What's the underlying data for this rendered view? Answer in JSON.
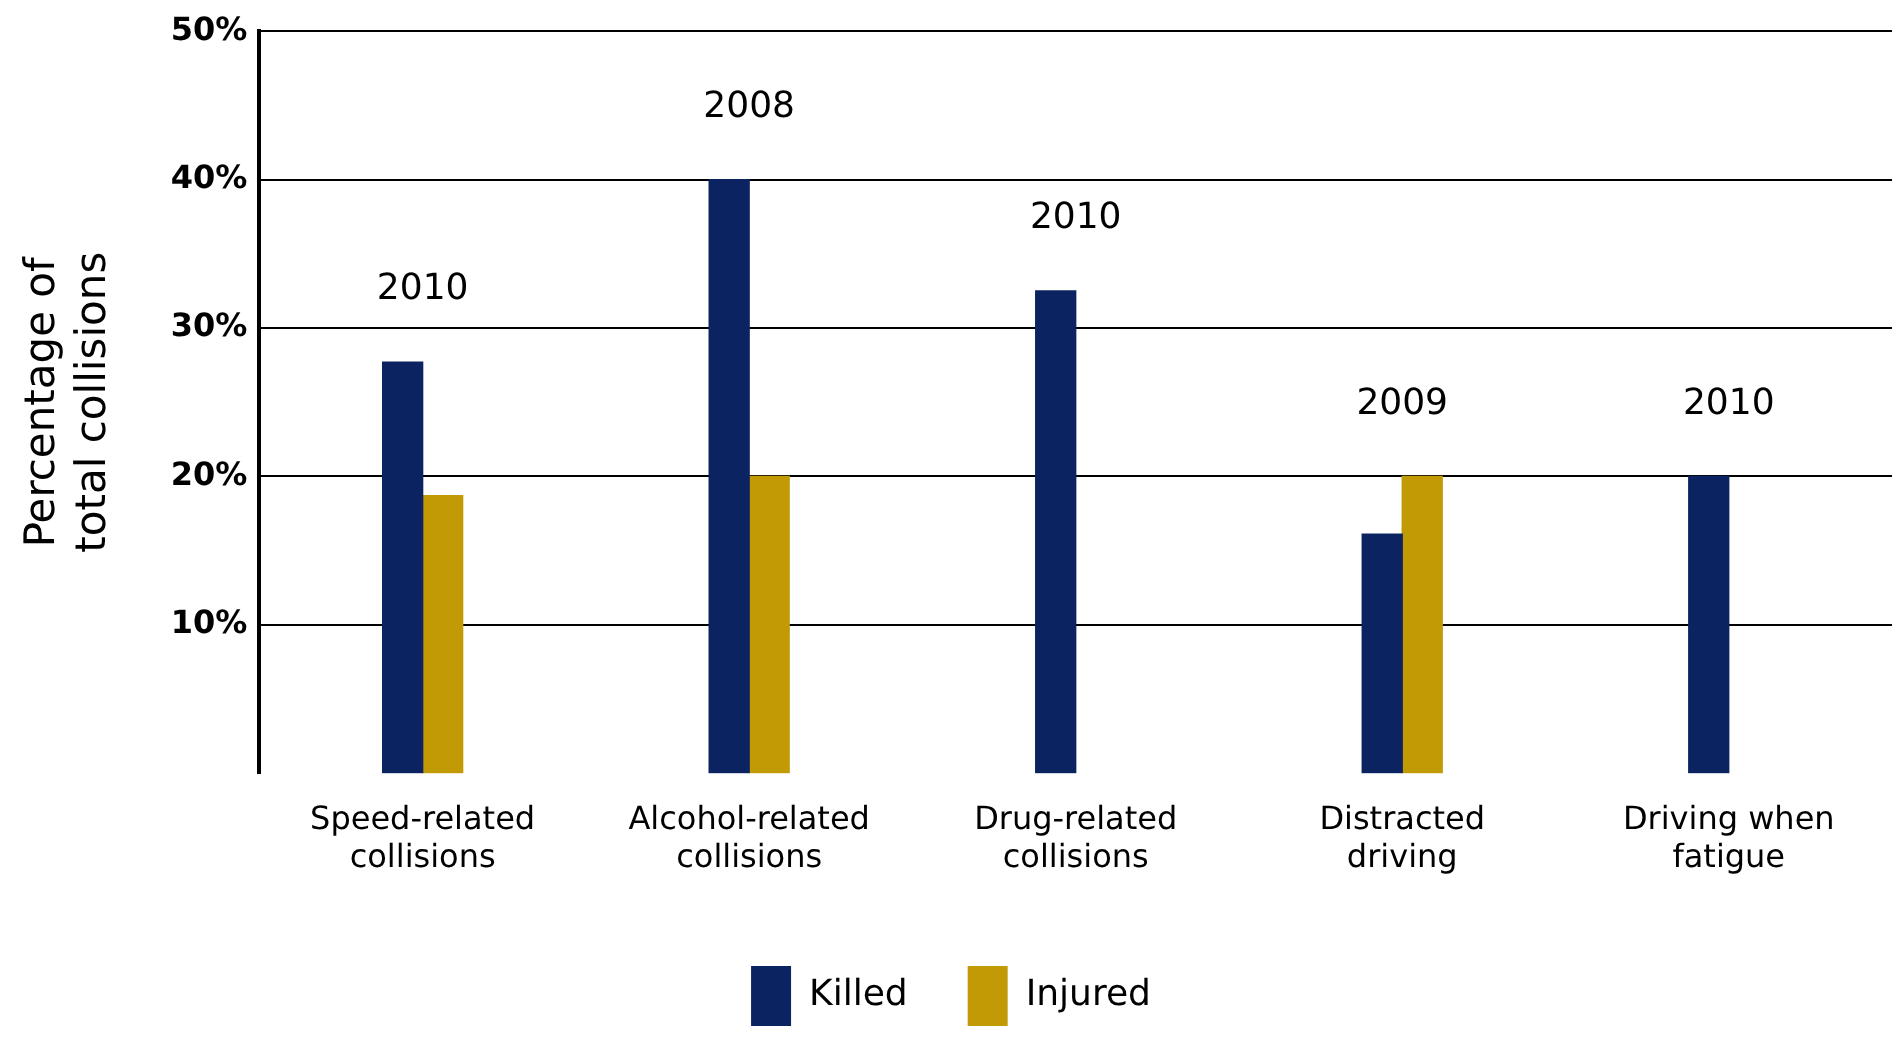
{
  "chart_data": {
    "type": "bar",
    "ylabel": "Percentage of total collisions",
    "categories": [
      "Speed-related collisions",
      "Alcohol-related collisions",
      "Drug-related collisions",
      "Distracted driving",
      "Driving when fatigue"
    ],
    "series": [
      {
        "name": "Killed",
        "color": "#0b2461",
        "values": [
          27.7,
          40,
          32.5,
          16.1,
          20
        ]
      },
      {
        "name": "Injured",
        "color": "#c19a06",
        "values": [
          18.7,
          20,
          null,
          20,
          null
        ]
      }
    ],
    "ylim": [
      0,
      50
    ],
    "yticks": [
      {
        "value": 10,
        "label": "10%"
      },
      {
        "value": 20,
        "label": "20%"
      },
      {
        "value": 30,
        "label": "30%"
      },
      {
        "value": 40,
        "label": "40%"
      },
      {
        "value": 50,
        "label": "50%"
      }
    ],
    "grid": "y",
    "legend": "bottom",
    "annotations": [
      "2010",
      "2008",
      "2010",
      "2009",
      "2010"
    ]
  }
}
